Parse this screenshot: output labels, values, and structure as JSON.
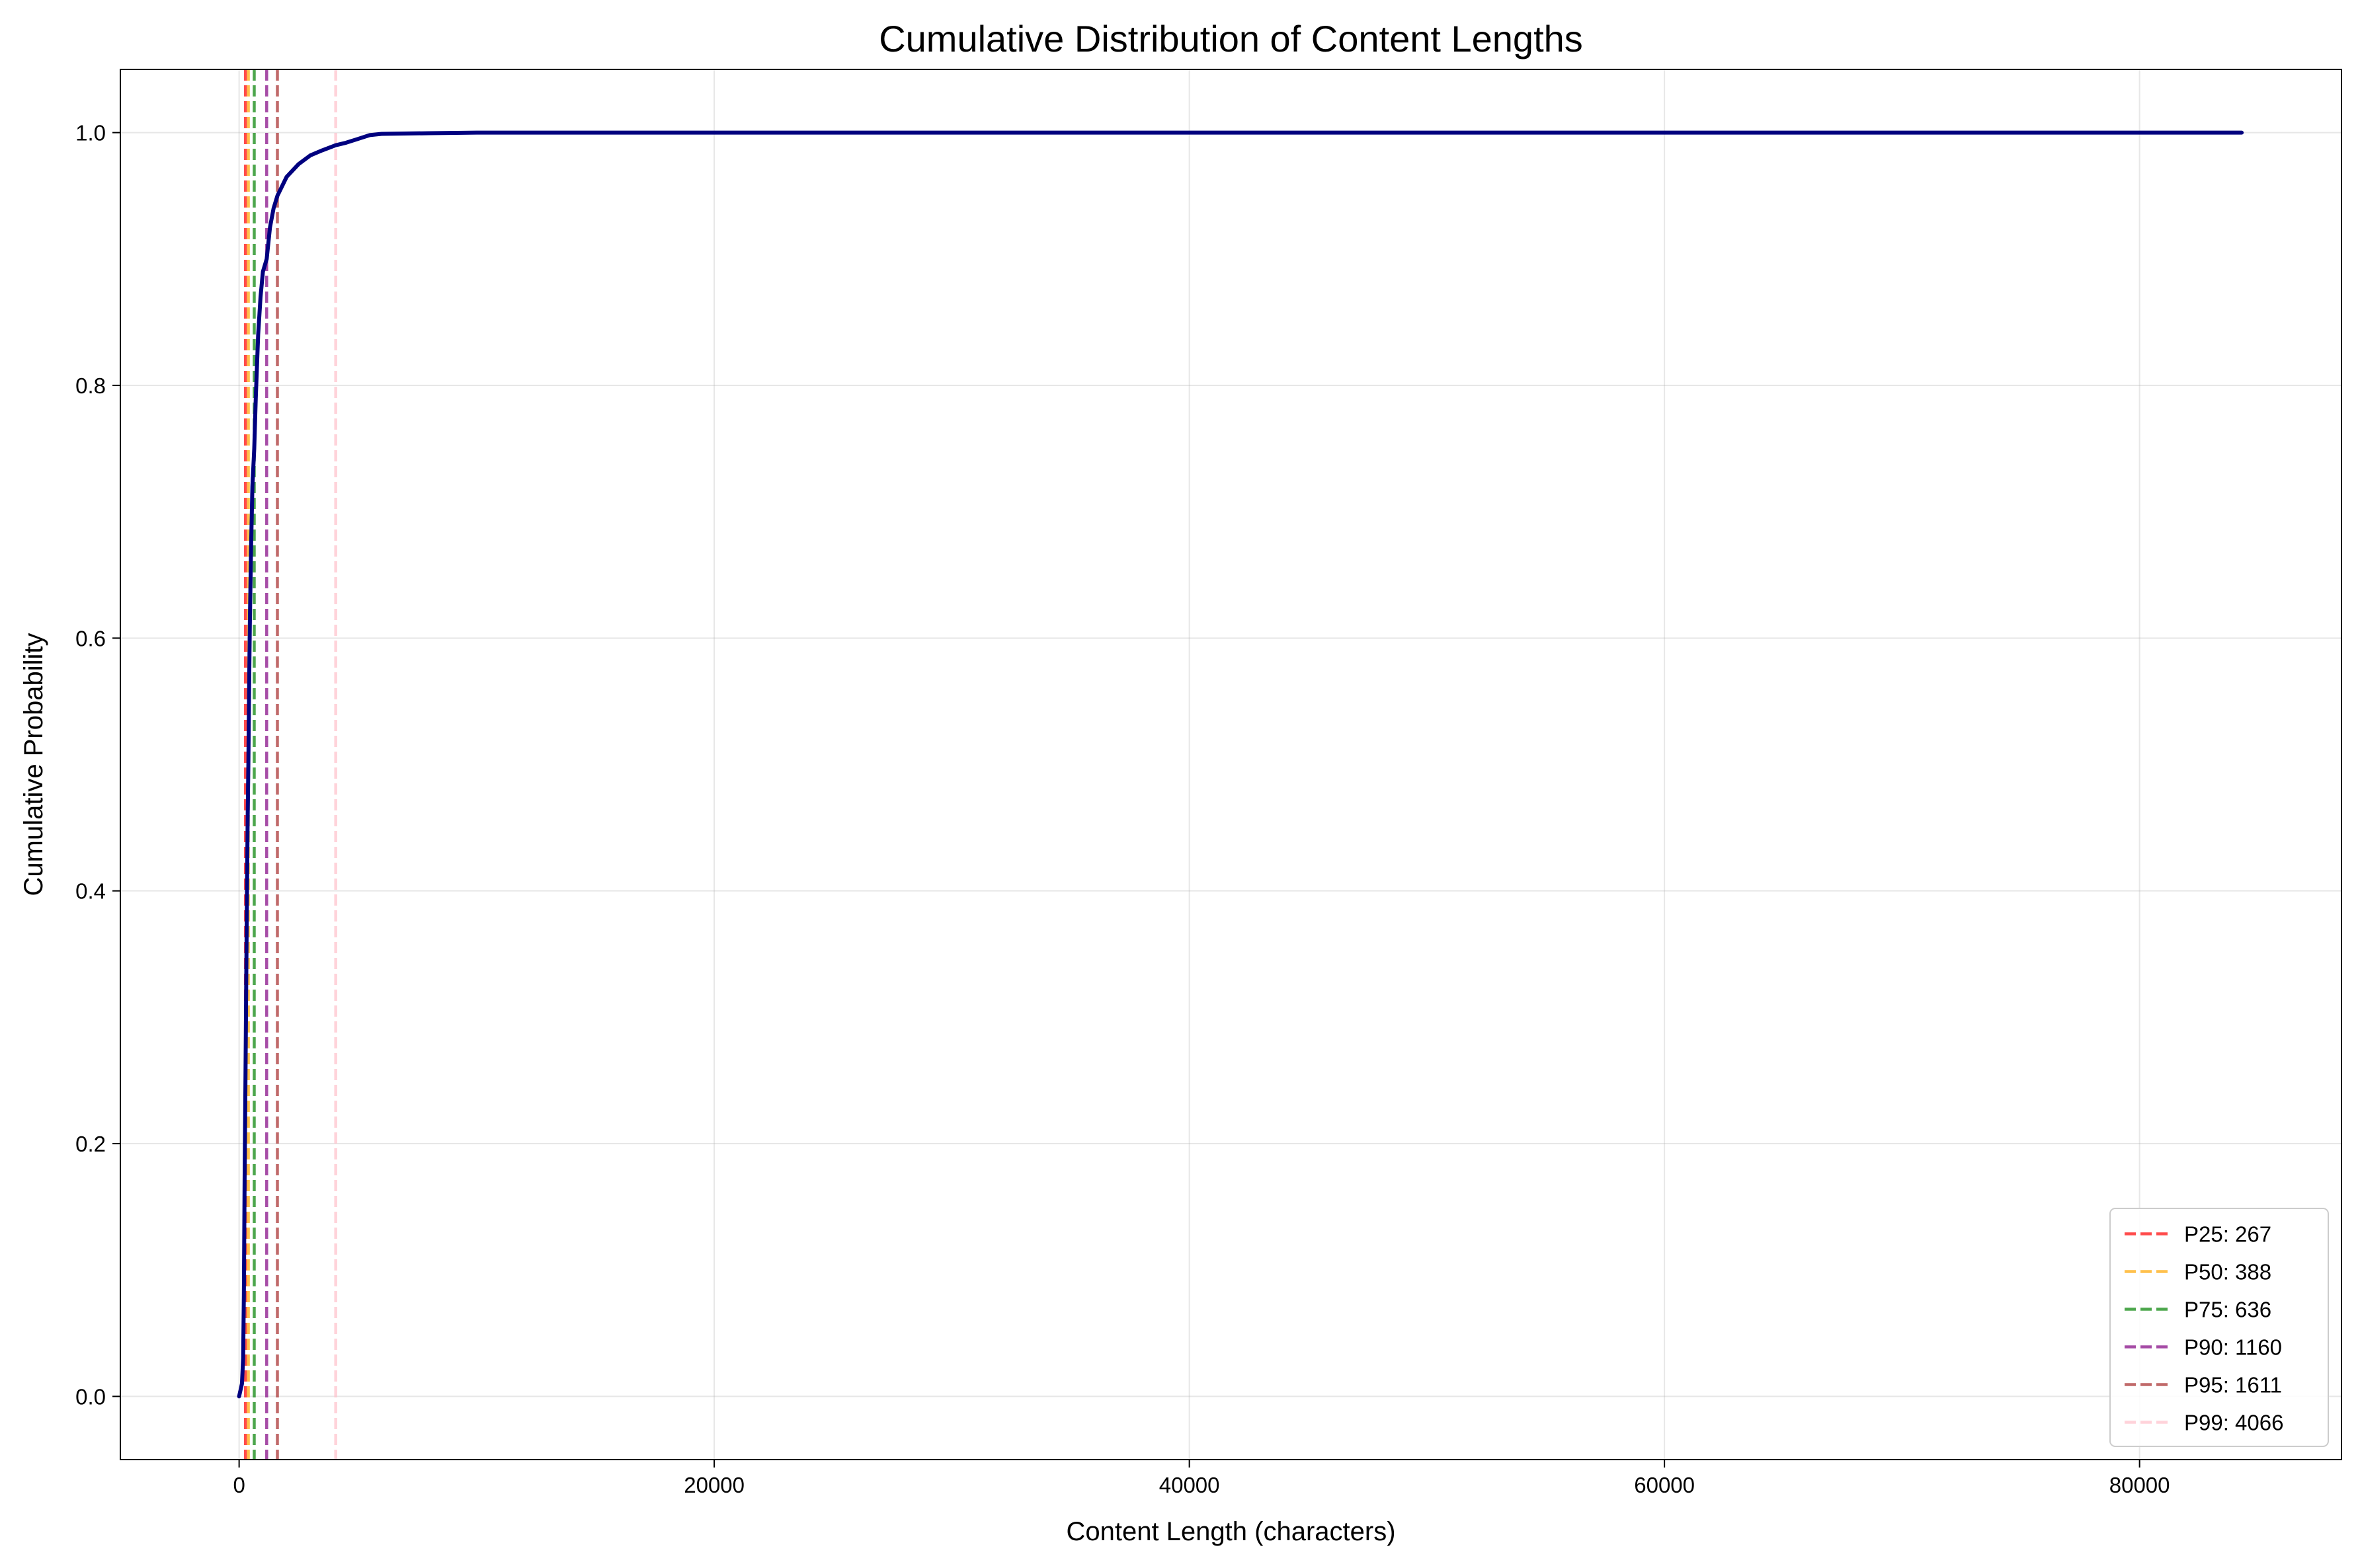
{
  "chart_data": {
    "type": "line",
    "title": "Cumulative Distribution of Content Lengths",
    "xlabel": "Content Length (characters)",
    "ylabel": "Cumulative Probability",
    "xlim": [
      -5000,
      88500
    ],
    "ylim": [
      -0.05,
      1.05
    ],
    "xticks": [
      0,
      20000,
      40000,
      60000,
      80000
    ],
    "xtick_labels": [
      "0",
      "20000",
      "40000",
      "60000",
      "80000"
    ],
    "yticks": [
      0.0,
      0.2,
      0.4,
      0.6,
      0.8,
      1.0
    ],
    "ytick_labels": [
      "0.0",
      "0.2",
      "0.4",
      "0.6",
      "0.8",
      "1.0"
    ],
    "grid": true,
    "legend_position": "bottom-right",
    "cdf": {
      "color": "#00007f",
      "x": [
        0,
        120,
        170,
        200,
        230,
        267,
        300,
        330,
        360,
        388,
        420,
        450,
        500,
        560,
        636,
        700,
        800,
        900,
        1000,
        1160,
        1300,
        1450,
        1611,
        2000,
        2500,
        3000,
        3500,
        4066,
        4500,
        5000,
        5500,
        6000,
        8000,
        10000,
        20000,
        40000,
        60000,
        84300
      ],
      "y": [
        0.0,
        0.01,
        0.03,
        0.08,
        0.17,
        0.25,
        0.33,
        0.4,
        0.46,
        0.5,
        0.56,
        0.61,
        0.67,
        0.72,
        0.75,
        0.79,
        0.84,
        0.87,
        0.89,
        0.9,
        0.925,
        0.94,
        0.95,
        0.965,
        0.975,
        0.982,
        0.986,
        0.99,
        0.992,
        0.995,
        0.998,
        0.999,
        0.9995,
        1.0,
        1.0,
        1.0,
        1.0,
        1.0
      ]
    },
    "percentiles": [
      {
        "label": "P25: 267",
        "value": 267,
        "color": "#ff0000",
        "opacity": 0.7
      },
      {
        "label": "P50: 388",
        "value": 388,
        "color": "#ffa500",
        "opacity": 0.7
      },
      {
        "label": "P75: 636",
        "value": 636,
        "color": "#008000",
        "opacity": 0.7
      },
      {
        "label": "P90: 1160",
        "value": 1160,
        "color": "#800080",
        "opacity": 0.7
      },
      {
        "label": "P95: 1611",
        "value": 1611,
        "color": "#a52a2a",
        "opacity": 0.7
      },
      {
        "label": "P99: 4066",
        "value": 4066,
        "color": "#ffc0cb",
        "opacity": 0.7
      }
    ]
  }
}
